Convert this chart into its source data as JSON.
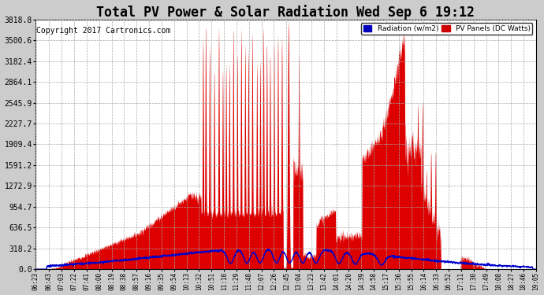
{
  "title": "Total PV Power & Solar Radiation Wed Sep 6 19:12",
  "copyright": "Copyright 2017 Cartronics.com",
  "legend_radiation": "Radiation (w/m2)",
  "legend_pv": "PV Panels (DC Watts)",
  "legend_radiation_bg": "#0000bb",
  "legend_pv_bg": "#cc0000",
  "yticks": [
    0.0,
    318.2,
    636.5,
    954.7,
    1272.9,
    1591.2,
    1909.4,
    2227.7,
    2545.9,
    2864.1,
    3182.4,
    3500.6,
    3818.8
  ],
  "xticks": [
    "06:23",
    "06:43",
    "07:03",
    "07:22",
    "07:41",
    "08:00",
    "08:19",
    "08:38",
    "08:57",
    "09:16",
    "09:35",
    "09:54",
    "10:13",
    "10:32",
    "10:51",
    "11:10",
    "11:29",
    "11:48",
    "12:07",
    "12:26",
    "12:45",
    "13:04",
    "13:23",
    "13:42",
    "14:01",
    "14:20",
    "14:39",
    "14:58",
    "15:17",
    "15:36",
    "15:55",
    "16:14",
    "16:33",
    "16:52",
    "17:11",
    "17:30",
    "17:49",
    "18:08",
    "18:27",
    "18:46",
    "19:05"
  ],
  "ymax": 3818.8,
  "plot_bg": "#ffffff",
  "fig_bg": "#cccccc",
  "grid_color": "#aaaaaa",
  "pv_color": "#dd0000",
  "radiation_color": "#0000cc",
  "title_fontsize": 12,
  "copyright_fontsize": 7
}
